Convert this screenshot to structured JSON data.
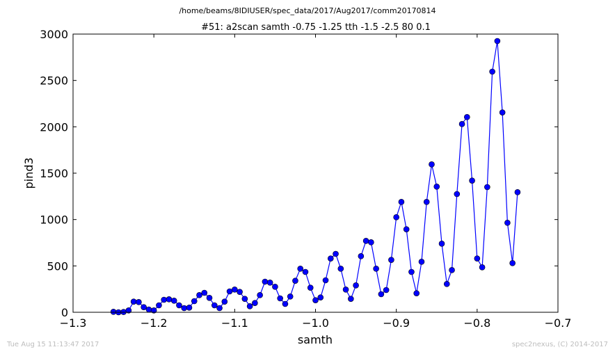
{
  "header": {
    "path": "/home/beams/8IDIUSER/spec_data/2017/Aug2017/comm20170814"
  },
  "footer": {
    "timestamp": "Tue Aug 15 11:13:47 2017",
    "credit": "spec2nexus, (C) 2014-2017"
  },
  "colors": {
    "series": "#0000ff",
    "axes": "#000000",
    "footer_text": "#bdbdbd"
  },
  "chart_data": {
    "type": "line",
    "title": "#51: a2scan  samth -0.75 -1.25  tth -1.5 -2.5  80 0.1",
    "xlabel": "samth",
    "ylabel": "pind3",
    "xlim": [
      -1.3,
      -0.7
    ],
    "ylim": [
      0,
      3000
    ],
    "xticks": [
      -1.3,
      -1.2,
      -1.1,
      -1.0,
      -0.9,
      -0.8,
      -0.7
    ],
    "xtick_labels": [
      "−1.3",
      "−1.2",
      "−1.1",
      "−1.0",
      "−0.9",
      "−0.8",
      "−0.7"
    ],
    "yticks": [
      0,
      500,
      1000,
      1500,
      2000,
      2500,
      3000
    ],
    "ytick_labels": [
      "0",
      "500",
      "1000",
      "1500",
      "2000",
      "2500",
      "3000"
    ],
    "grid": false,
    "marker": "circle",
    "series": [
      {
        "x": [
          -1.25,
          -1.24375,
          -1.2375,
          -1.23125,
          -1.225,
          -1.21875,
          -1.2125,
          -1.20625,
          -1.2,
          -1.19375,
          -1.1875,
          -1.18125,
          -1.175,
          -1.16875,
          -1.1625,
          -1.15625,
          -1.15,
          -1.14375,
          -1.1375,
          -1.13125,
          -1.125,
          -1.11875,
          -1.1125,
          -1.10625,
          -1.1,
          -1.09375,
          -1.0875,
          -1.08125,
          -1.075,
          -1.06875,
          -1.0625,
          -1.05625,
          -1.05,
          -1.04375,
          -1.0375,
          -1.03125,
          -1.025,
          -1.01875,
          -1.0125,
          -1.00625,
          -1.0,
          -0.99375,
          -0.9875,
          -0.98125,
          -0.975,
          -0.96875,
          -0.9625,
          -0.95625,
          -0.95,
          -0.94375,
          -0.9375,
          -0.93125,
          -0.925,
          -0.91875,
          -0.9125,
          -0.90625,
          -0.9,
          -0.89375,
          -0.8875,
          -0.88125,
          -0.875,
          -0.86875,
          -0.8625,
          -0.85625,
          -0.85,
          -0.84375,
          -0.8375,
          -0.83125,
          -0.825,
          -0.81875,
          -0.8125,
          -0.80625,
          -0.8,
          -0.79375,
          -0.7875,
          -0.78125,
          -0.775,
          -0.76875,
          -0.7625,
          -0.75625,
          -0.75
        ],
        "values": [
          5,
          0,
          3,
          20,
          115,
          110,
          55,
          30,
          20,
          75,
          135,
          140,
          125,
          75,
          45,
          50,
          120,
          185,
          210,
          155,
          75,
          45,
          115,
          225,
          245,
          220,
          145,
          65,
          100,
          185,
          330,
          320,
          275,
          150,
          90,
          170,
          340,
          470,
          435,
          265,
          130,
          160,
          345,
          580,
          630,
          470,
          245,
          145,
          290,
          605,
          770,
          755,
          470,
          195,
          240,
          565,
          1025,
          1190,
          895,
          435,
          205,
          545,
          1190,
          1595,
          1355,
          740,
          305,
          455,
          1275,
          2030,
          2105,
          1420,
          580,
          485,
          1350,
          2595,
          2925,
          2155,
          965,
          530,
          1295
        ]
      }
    ]
  }
}
